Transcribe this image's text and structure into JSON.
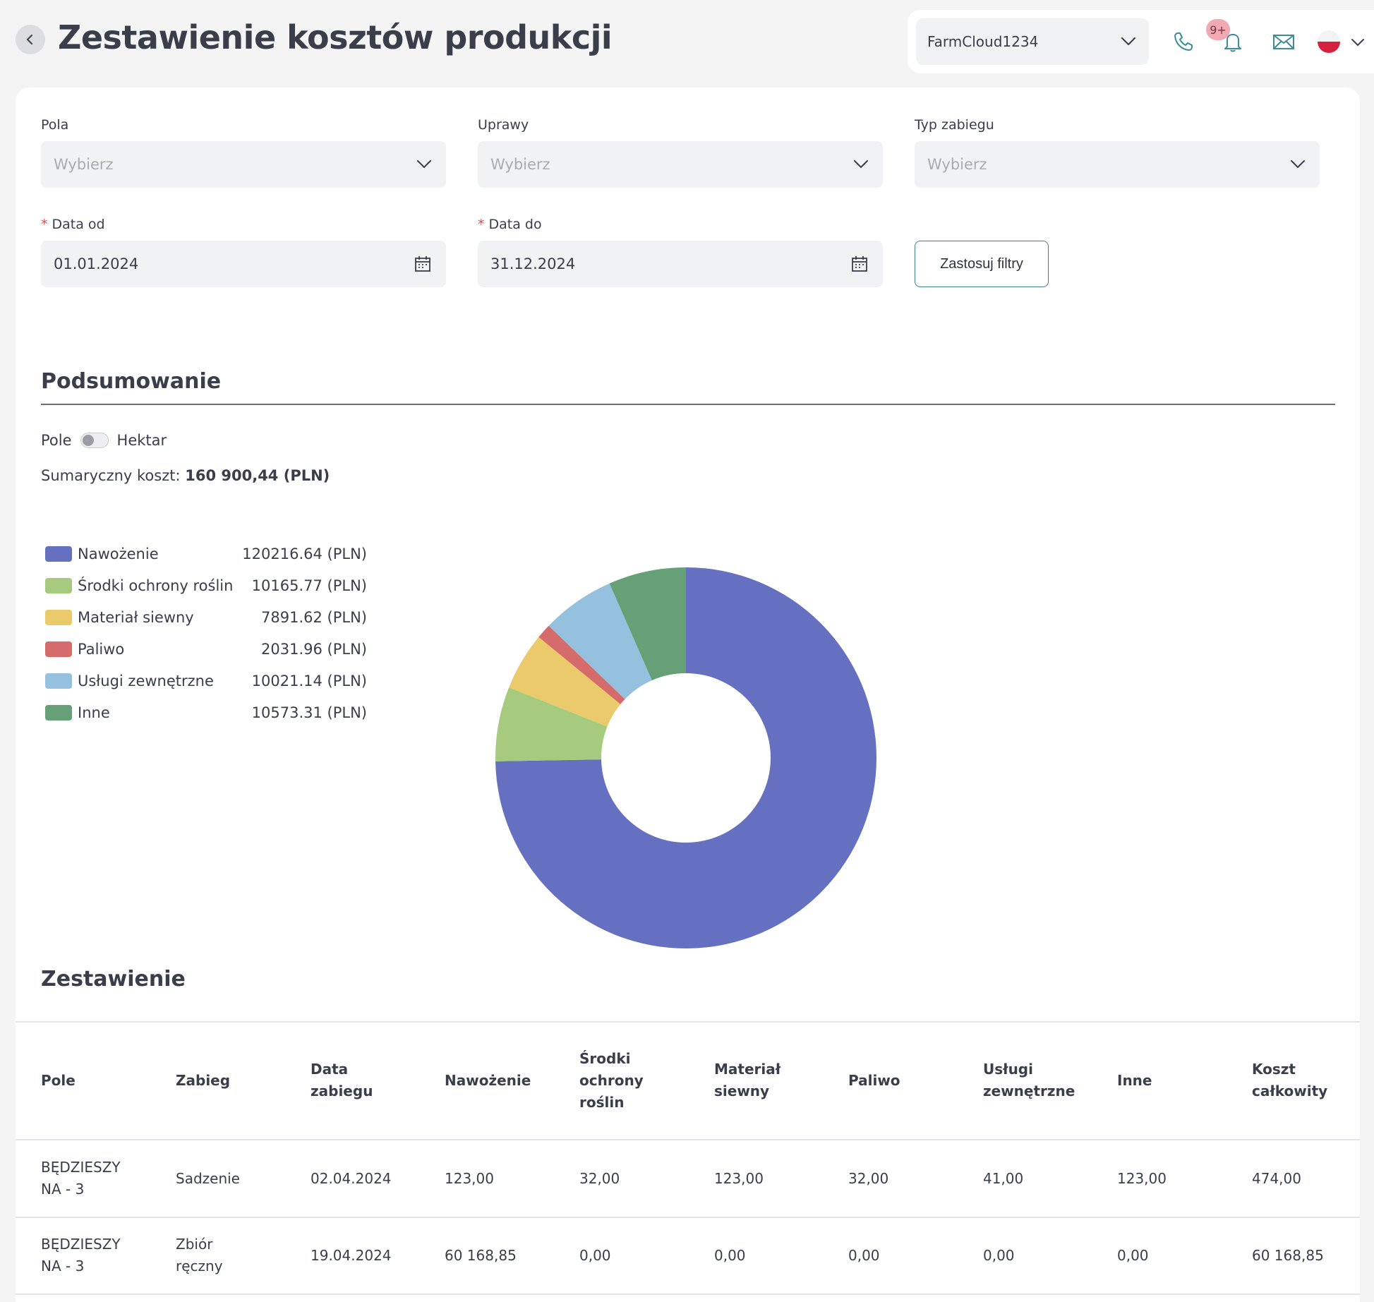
{
  "header": {
    "title": "Zestawienie kosztów produkcji",
    "account": "FarmCloud1234",
    "notifications_badge": "9+"
  },
  "filters": {
    "pola": {
      "label": "Pola",
      "placeholder": "Wybierz"
    },
    "uprawy": {
      "label": "Uprawy",
      "placeholder": "Wybierz"
    },
    "typ_zabiegu": {
      "label": "Typ zabiegu",
      "placeholder": "Wybierz"
    },
    "data_od": {
      "label": "Data od",
      "required_mark": "*",
      "value": "01.01.2024"
    },
    "data_do": {
      "label": "Data do",
      "required_mark": "*",
      "value": "31.12.2024"
    },
    "apply_label": "Zastosuj filtry"
  },
  "summary": {
    "title": "Podsumowanie",
    "toggle_left": "Pole",
    "toggle_right": "Hektar",
    "toggle_on": false,
    "total_label": "Sumaryczny koszt:",
    "total_value": "160 900,44 (PLN)"
  },
  "chart_data": {
    "type": "pie",
    "donut": true,
    "categories": [
      "Nawożenie",
      "Środki ochrony roślin",
      "Materiał siewny",
      "Paliwo",
      "Usługi zewnętrzne",
      "Inne"
    ],
    "values": [
      120216.64,
      10165.77,
      7891.62,
      2031.96,
      10021.14,
      10573.31
    ],
    "value_labels": [
      "120216.64 (PLN)",
      "10165.77 (PLN)",
      "7891.62 (PLN)",
      "2031.96 (PLN)",
      "10021.14 (PLN)",
      "10573.31 (PLN)"
    ],
    "colors": [
      "#6670c0",
      "#a6cb7f",
      "#eaca6a",
      "#d56b6b",
      "#96c1de",
      "#66a076"
    ],
    "legend_position": "left"
  },
  "table": {
    "title": "Zestawienie",
    "headers": [
      "Pole",
      "Zabieg",
      "Data zabiegu",
      "Nawożenie",
      "Środki ochrony roślin",
      "Materiał siewny",
      "Paliwo",
      "Usługi zewnętrzne",
      "Inne",
      "Koszt całkowity"
    ],
    "rows": [
      [
        "BĘDZIESZYNA - 3",
        "Sadzenie",
        "02.04.2024",
        "123,00",
        "32,00",
        "123,00",
        "32,00",
        "41,00",
        "123,00",
        "474,00"
      ],
      [
        "BĘDZIESZYNA - 3",
        "Zbiór ręczny",
        "19.04.2024",
        "60 168,85",
        "0,00",
        "0,00",
        "0,00",
        "0,00",
        "0,00",
        "60 168,85"
      ]
    ]
  },
  "header_cells": [
    [
      "Pole"
    ],
    [
      "Zabieg"
    ],
    [
      "Data",
      "zabiegu"
    ],
    [
      "Nawożenie"
    ],
    [
      "Środki",
      "ochrony",
      "roślin"
    ],
    [
      "Materiał",
      "siewny"
    ],
    [
      "Paliwo"
    ],
    [
      "Usługi",
      "zewnętrzne"
    ],
    [
      "Inne"
    ],
    [
      "Koszt",
      "całkowity"
    ]
  ],
  "row_cells": [
    [
      [
        "BĘDZIESZY",
        "NA - 3"
      ],
      [
        "Sadzenie"
      ],
      [
        "02.04.2024"
      ],
      [
        "123,00"
      ],
      [
        "32,00"
      ],
      [
        "123,00"
      ],
      [
        "32,00"
      ],
      [
        "41,00"
      ],
      [
        "123,00"
      ],
      [
        "474,00"
      ]
    ],
    [
      [
        "BĘDZIESZY",
        "NA - 3"
      ],
      [
        "Zbiór",
        "ręczny"
      ],
      [
        "19.04.2024"
      ],
      [
        "60 168,85"
      ],
      [
        "0,00"
      ],
      [
        "0,00"
      ],
      [
        "0,00"
      ],
      [
        "0,00"
      ],
      [
        "0,00"
      ],
      [
        "60 168,85"
      ]
    ]
  ]
}
